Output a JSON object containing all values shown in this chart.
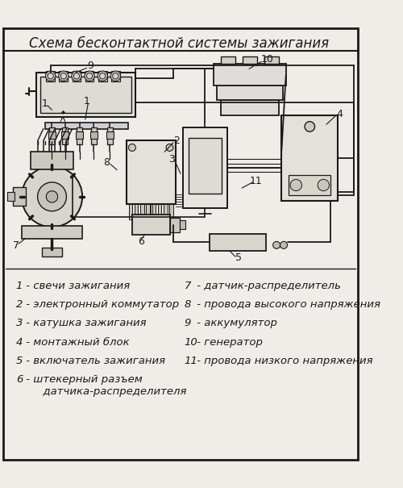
{
  "title": "Схема бесконтактной системы зажигания",
  "bg_color": "#f0ede8",
  "border_color": "#1a1a1a",
  "text_color": "#1a1a1a",
  "figsize": [
    5.0,
    6.05
  ],
  "dpi": 100,
  "legend_left": [
    [
      "1",
      " - свечи зажигания"
    ],
    [
      "2",
      " - электронный коммутатор"
    ],
    [
      "3",
      " - катушка зажигания"
    ],
    [
      "4",
      " - монтажный блок"
    ],
    [
      "5",
      " - включатель зажигания"
    ],
    [
      "6",
      " - штекерный разъем\n      датчика-распределителя"
    ]
  ],
  "legend_right": [
    [
      "7",
      " - датчик-распределитель"
    ],
    [
      "8",
      " - провода высокого напряжения"
    ],
    [
      "9",
      " - аккумулятор"
    ],
    [
      "10",
      " - генератор"
    ],
    [
      "11",
      " - провода низкого напряжения"
    ]
  ]
}
